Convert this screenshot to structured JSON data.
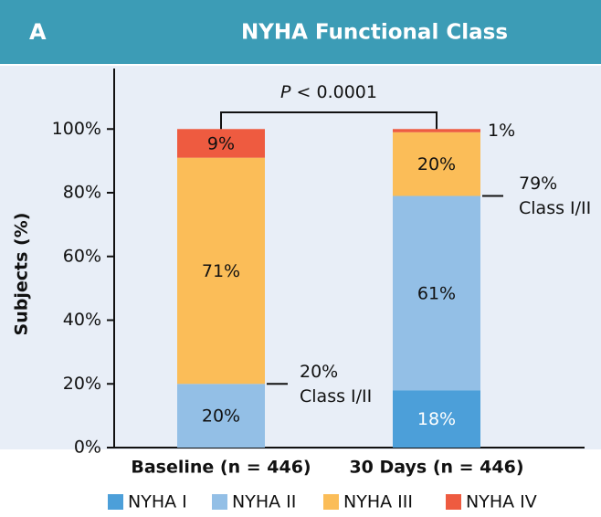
{
  "panel_label": "A",
  "chart_data": {
    "type": "stacked-bar",
    "title": "NYHA Functional Class",
    "y_label": "Subjects (%)",
    "categories": [
      "Baseline (n = 446)",
      "30 Days (n = 446)"
    ],
    "series": [
      {
        "name": "NYHA I",
        "color": "#4c9fd9",
        "values": [
          0,
          18
        ],
        "value_labels": [
          null,
          "18%"
        ]
      },
      {
        "name": "NYHA II",
        "color": "#93bfe6",
        "values": [
          20,
          61
        ],
        "value_labels": [
          "20%",
          "61%"
        ]
      },
      {
        "name": "NYHA III",
        "color": "#fbbd58",
        "values": [
          71,
          20
        ],
        "value_labels": [
          "71%",
          "20%"
        ]
      },
      {
        "name": "NYHA IV",
        "color": "#ee5b40",
        "values": [
          9,
          1
        ],
        "value_labels": [
          "9%",
          "1%"
        ]
      }
    ],
    "ylim": [
      0,
      119
    ],
    "yticks": [
      {
        "value": 0,
        "label": "0%"
      },
      {
        "value": 20,
        "label": "20%"
      },
      {
        "value": 40,
        "label": "40%"
      },
      {
        "value": 60,
        "label": "60%"
      },
      {
        "value": 80,
        "label": "80%"
      },
      {
        "value": 100,
        "label": "100%"
      }
    ],
    "annotations": [
      {
        "value": 20,
        "label": "20%",
        "text": "Class I/II"
      },
      {
        "value": 79,
        "label": "79%",
        "text": "Class I/II"
      }
    ],
    "p_symbol": "P",
    "p_text": "< 0.0001"
  }
}
